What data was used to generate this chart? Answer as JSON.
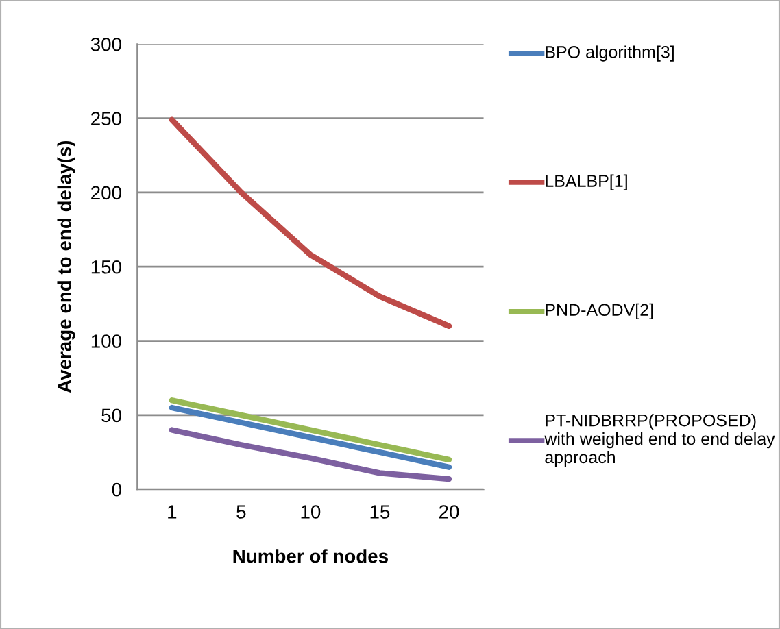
{
  "chart_data": {
    "type": "line",
    "xlabel": "Number of nodes",
    "ylabel": "Average end to end delay(s)",
    "categories": [
      "1",
      "5",
      "10",
      "15",
      "20"
    ],
    "series": [
      {
        "name": "BPO algorithm[3]",
        "color": "#4a7ebb",
        "values": [
          55,
          45,
          35,
          25,
          15
        ]
      },
      {
        "name": "LBALBP[1]",
        "color": "#be4b48",
        "values": [
          249,
          200,
          158,
          130,
          110
        ]
      },
      {
        "name": "PND-AODV[2]",
        "color": "#98b954",
        "values": [
          60,
          50,
          40,
          30,
          20
        ]
      },
      {
        "name": "PT-NIDBRRP(PROPOSED) with weighed end to end delay approach",
        "color": "#7d60a0",
        "values": [
          40,
          30,
          21,
          11,
          7
        ]
      }
    ],
    "ylim": [
      0,
      300
    ],
    "yticks": [
      0,
      50,
      100,
      150,
      200,
      250,
      300
    ],
    "grid": "y",
    "legend": "right",
    "marker": "none",
    "line_style": "solid"
  }
}
